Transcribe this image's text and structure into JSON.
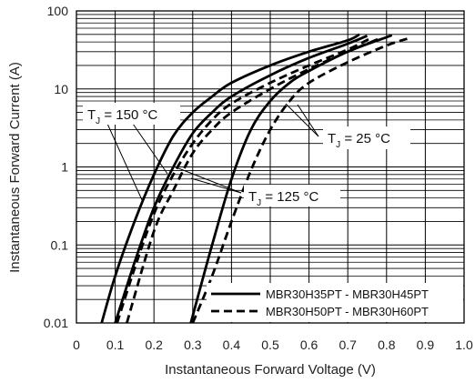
{
  "chart_data": {
    "type": "line",
    "xlabel": "Instantaneous Forward Voltage (V)",
    "ylabel": "Instantaneous Forward Current (A)",
    "xlim": [
      0,
      1.0
    ],
    "ylim": [
      0.01,
      100
    ],
    "y_scale": "log",
    "grid": true,
    "x_ticks": [
      "0",
      "0.1",
      "0.2",
      "0.3",
      "0.4",
      "0.5",
      "0.6",
      "0.7",
      "0.8",
      "0.9",
      "1.0"
    ],
    "y_ticks": [
      "0.01",
      "0.1",
      "1",
      "10",
      "100"
    ],
    "legend_position": "bottom-right",
    "legend": [
      {
        "label": "MBR30H35PT - MBR30H45PT",
        "style": "solid"
      },
      {
        "label": "MBR30H50PT - MBR30H60PT",
        "style": "dashed"
      }
    ],
    "annotations": [
      {
        "base": "T",
        "sub": "J",
        "suffix": " = 150 °C"
      },
      {
        "base": "T",
        "sub": "J",
        "suffix": " = 25 °C"
      },
      {
        "base": "T",
        "sub": "J",
        "suffix": " = 125 °C"
      }
    ],
    "series": [
      {
        "style": "solid",
        "group": "150",
        "x": [
          0.065,
          0.1,
          0.15,
          0.2,
          0.25,
          0.3,
          0.35,
          0.4,
          0.5,
          0.6,
          0.7,
          0.73
        ],
        "y": [
          0.01,
          0.04,
          0.2,
          0.8,
          2.5,
          5,
          8,
          12,
          20,
          30,
          42,
          50
        ]
      },
      {
        "style": "dashed",
        "group": "150",
        "x": [
          0.105,
          0.15,
          0.2,
          0.25,
          0.3,
          0.35,
          0.4,
          0.5,
          0.6,
          0.7,
          0.76
        ],
        "y": [
          0.01,
          0.05,
          0.25,
          0.8,
          2,
          4,
          6.5,
          12,
          20,
          32,
          45
        ]
      },
      {
        "style": "solid",
        "group": "125",
        "x": [
          0.1,
          0.15,
          0.2,
          0.25,
          0.3,
          0.35,
          0.4,
          0.5,
          0.6,
          0.7,
          0.75
        ],
        "y": [
          0.01,
          0.06,
          0.3,
          1,
          2.7,
          5,
          8,
          15,
          25,
          38,
          48
        ]
      },
      {
        "style": "dashed",
        "group": "125",
        "x": [
          0.13,
          0.2,
          0.25,
          0.3,
          0.35,
          0.4,
          0.5,
          0.6,
          0.7,
          0.78
        ],
        "y": [
          0.01,
          0.15,
          0.5,
          1.5,
          3,
          5,
          10,
          18,
          30,
          44
        ]
      },
      {
        "style": "solid",
        "group": "25",
        "x": [
          0.295,
          0.35,
          0.4,
          0.45,
          0.5,
          0.55,
          0.6,
          0.7,
          0.8,
          0.81
        ],
        "y": [
          0.01,
          0.1,
          0.7,
          3,
          7,
          12,
          17,
          30,
          46,
          48
        ]
      },
      {
        "style": "dashed",
        "group": "25",
        "x": [
          0.3,
          0.35,
          0.4,
          0.45,
          0.5,
          0.55,
          0.6,
          0.7,
          0.8,
          0.86
        ],
        "y": [
          0.01,
          0.04,
          0.2,
          0.9,
          3,
          7,
          12,
          22,
          36,
          45
        ]
      }
    ]
  }
}
